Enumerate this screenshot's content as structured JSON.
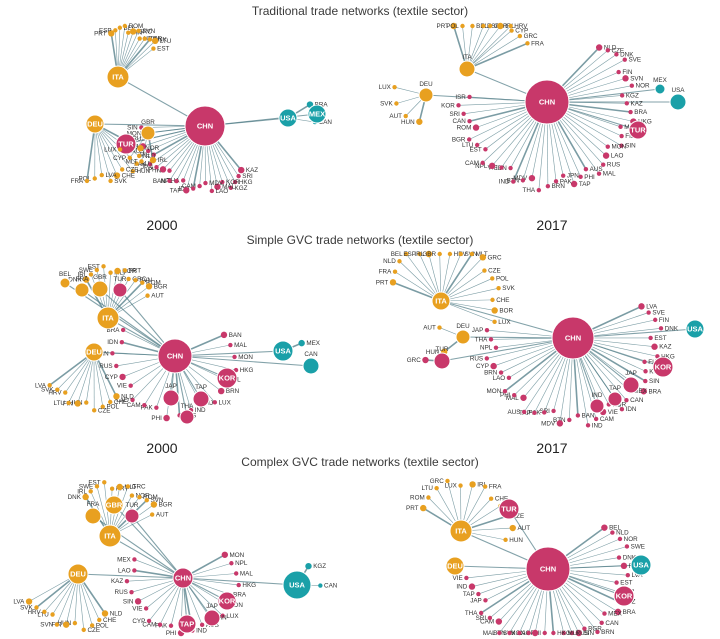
{
  "colors": {
    "asia": "#c8386a",
    "europe": "#e8a020",
    "americas": "#1aa0a8",
    "edge": "#4f7c86"
  },
  "sections": [
    {
      "title": "Traditional trade networks (textile sector)",
      "years": [
        "2000",
        "2017"
      ]
    },
    {
      "title": "Simple GVC trade networks (textile sector)",
      "years": [
        "2000",
        "2017"
      ]
    },
    {
      "title": "Complex GVC trade networks (textile sector)",
      "years": [
        "",
        ""
      ]
    }
  ],
  "networks": [
    {
      "hubs": [
        {
          "name": "CHN",
          "color": "asia",
          "leaves": [
            "KAZ",
            "SRI",
            "HKG",
            "KGZ",
            "KOR",
            "MAL",
            "LAO",
            "MDV",
            "CAM",
            "IDN",
            "TAP",
            "THA",
            "NPL",
            "BAN",
            "IND",
            "PHI",
            "JPN",
            "PAK",
            "VIE",
            "AUS",
            "FIJ",
            "RUS",
            "MON",
            "SIN"
          ]
        },
        {
          "name": "ITA",
          "color": "europe",
          "leaves": [
            "PRT",
            "ESP",
            "BEL",
            "ROM",
            "FIN",
            "GRC",
            "SVN",
            "HRV",
            "BGR",
            "DNK",
            "LTU",
            "EST"
          ]
        },
        {
          "name": "DEU",
          "color": "europe",
          "leaves": [
            "NOR",
            "NLD",
            "AUT",
            "HUN",
            "CZE",
            "CHE",
            "SVK",
            "LVA",
            "POL",
            "FRA"
          ]
        },
        {
          "name": "TUR",
          "color": "asia",
          "leaves": []
        },
        {
          "name": "USA",
          "color": "americas",
          "leaves": [
            "BRA",
            "CAN"
          ]
        },
        {
          "name": "MEX",
          "color": "americas",
          "leaves": []
        },
        {
          "name": "GBR",
          "color": "europe",
          "leaves": [
            "IRL",
            "MLT",
            "CYP",
            "LUX"
          ]
        }
      ]
    },
    {
      "hubs": [
        {
          "name": "CHN",
          "color": "asia",
          "leaves": [
            "NLD",
            "CZE",
            "DNK",
            "SVE",
            "FIN",
            "SVN",
            "NOR",
            "KGZ",
            "KAZ",
            "BRA",
            "HKG",
            "MLT",
            "FIJ",
            "SIN",
            "MON",
            "LAO",
            "RUS",
            "MAL",
            "AUS",
            "PHI",
            "TAP",
            "JPN",
            "PAK",
            "BRN",
            "THA",
            "MDV",
            "BTN",
            "IND",
            "IDN",
            "VIE",
            "NPL",
            "CAM",
            "EST",
            "LTU",
            "BGR",
            "ROM",
            "CAN",
            "SRI",
            "KOR",
            "ISR"
          ]
        },
        {
          "name": "ITA",
          "color": "europe",
          "leaves": [
            "PRT",
            "POL",
            "BEL",
            "ESP",
            "GBR",
            "IRL",
            "HRV",
            "CYP",
            "GRC",
            "FRA"
          ]
        },
        {
          "name": "DEU",
          "color": "europe",
          "leaves": [
            "HUN",
            "AUT",
            "SVK",
            "LUX"
          ]
        },
        {
          "name": "TUR",
          "color": "asia",
          "leaves": []
        },
        {
          "name": "USA",
          "color": "americas",
          "leaves": []
        },
        {
          "name": "MEX",
          "color": "americas",
          "leaves": []
        }
      ]
    },
    {
      "hubs": [
        {
          "name": "CHN",
          "color": "asia",
          "leaves": [
            "BAN",
            "MAL",
            "MON",
            "HKG",
            "NPL",
            "BRN",
            "LUX",
            "FIJ",
            "IND",
            "AUS",
            "PHI",
            "PAK",
            "CAM",
            "LAO",
            "VIE",
            "CYP",
            "RUS",
            "SIN",
            "IDN",
            "BRA"
          ]
        },
        {
          "name": "ITA",
          "color": "europe",
          "leaves": [
            "DNK",
            "IRL",
            "SWE",
            "EST",
            "MLT",
            "NOR",
            "PRT",
            "GRC",
            "SVN",
            "ROM",
            "BGR",
            "AUT"
          ]
        },
        {
          "name": "DEU",
          "color": "europe",
          "leaves": [
            "NLD",
            "CHE",
            "POL",
            "CZE",
            "HUN",
            "FIN",
            "LTU",
            "HRV",
            "SVK",
            "LVA"
          ]
        },
        {
          "name": "GBR",
          "color": "europe",
          "leaves": []
        },
        {
          "name": "TUR",
          "color": "asia",
          "leaves": []
        },
        {
          "name": "FRA",
          "color": "europe",
          "leaves": []
        },
        {
          "name": "BEL",
          "color": "europe",
          "leaves": []
        },
        {
          "name": "USA",
          "color": "americas",
          "leaves": [
            "MEX"
          ]
        },
        {
          "name": "CAN",
          "color": "americas",
          "leaves": []
        },
        {
          "name": "KOR",
          "color": "asia",
          "leaves": []
        },
        {
          "name": "JAP",
          "color": "asia",
          "leaves": []
        },
        {
          "name": "TAP",
          "color": "asia",
          "leaves": []
        },
        {
          "name": "THA",
          "color": "asia",
          "leaves": []
        }
      ]
    },
    {
      "hubs": [
        {
          "name": "CHN",
          "color": "asia",
          "leaves": [
            "LVA",
            "SVE",
            "FIN",
            "DNK",
            "EST",
            "KAZ",
            "HKG",
            "FIJ",
            "KGZ",
            "SIN",
            "BRA",
            "MEX",
            "CAN",
            "IDN",
            "KOR",
            "VIE",
            "CAM",
            "IND",
            "BAN",
            "BTN",
            "MDV",
            "SRI",
            "PAK",
            "TAP",
            "AUS",
            "MAL",
            "PHI",
            "MON",
            "LAO",
            "BRN",
            "CYP",
            "RUS",
            "NPL",
            "THA",
            "JAP"
          ]
        },
        {
          "name": "ITA",
          "color": "europe",
          "leaves": [
            "PRT",
            "FRA",
            "NLD",
            "BEL",
            "ESP",
            "IRL",
            "GBR",
            "HRV",
            "SVN",
            "MLT",
            "GRC",
            "CZE",
            "POL",
            "SVK",
            "CHE",
            "BOR",
            "LUX"
          ]
        },
        {
          "name": "DEU",
          "color": "europe",
          "leaves": [
            "HUN",
            "AUT"
          ]
        },
        {
          "name": "TUR",
          "color": "asia",
          "leaves": [
            "GRC"
          ]
        },
        {
          "name": "USA",
          "color": "americas",
          "leaves": []
        },
        {
          "name": "KOR",
          "color": "asia",
          "leaves": []
        },
        {
          "name": "JAP",
          "color": "asia",
          "leaves": []
        },
        {
          "name": "TAP",
          "color": "asia",
          "leaves": []
        },
        {
          "name": "IND",
          "color": "asia",
          "leaves": []
        }
      ]
    },
    {
      "hubs": [
        {
          "name": "CHN",
          "color": "asia",
          "leaves": [
            "MON",
            "NPL",
            "MAL",
            "HKG",
            "BRA",
            "IDN",
            "LUX",
            "BAN",
            "AUS",
            "IND",
            "PHI",
            "PAK",
            "CAM",
            "CYP",
            "VIE",
            "SIN",
            "RUS",
            "KAZ",
            "LAO",
            "MEX"
          ]
        },
        {
          "name": "ITA",
          "color": "europe",
          "leaves": [
            "DNK",
            "IRL",
            "SWE",
            "EST",
            "PRT",
            "MLT",
            "GRC",
            "NOR",
            "ROM",
            "SVN",
            "BGR",
            "AUT"
          ]
        },
        {
          "name": "DEU",
          "color": "europe",
          "leaves": [
            "NLD",
            "CHE",
            "POL",
            "CZE",
            "HUN",
            "FIN",
            "SVN",
            "LTU",
            "HRV",
            "SVK",
            "LVA"
          ]
        },
        {
          "name": "GBR",
          "color": "europe",
          "leaves": []
        },
        {
          "name": "FRA",
          "color": "europe",
          "leaves": []
        },
        {
          "name": "TUR",
          "color": "asia",
          "leaves": []
        },
        {
          "name": "USA",
          "color": "americas",
          "leaves": [
            "KGZ",
            "CAN"
          ]
        },
        {
          "name": "KOR",
          "color": "asia",
          "leaves": []
        },
        {
          "name": "JAP",
          "color": "asia",
          "leaves": []
        },
        {
          "name": "TAP",
          "color": "asia",
          "leaves": []
        }
      ]
    },
    {
      "hubs": [
        {
          "name": "CHN",
          "color": "asia",
          "leaves": [
            "BEL",
            "NLD",
            "NOR",
            "SWE",
            "DNK",
            "FIN",
            "LVA",
            "EST",
            "KAZ",
            "KGZ",
            "BRA",
            "MEX",
            "CAN",
            "BRN",
            "BGR",
            "SIN",
            "RUS",
            "MLT",
            "HKG",
            "PHI",
            "LAO",
            "MON",
            "SVK",
            "BTN",
            "MAL",
            "CAM",
            "SRI",
            "THA",
            "JAP",
            "TAP",
            "IND",
            "VIE"
          ]
        },
        {
          "name": "ITA",
          "color": "europe",
          "leaves": [
            "PRT",
            "ROM",
            "LTU",
            "GRC",
            "LUX",
            "IRL",
            "FRA",
            "CHE",
            "POL",
            "CZE",
            "AUT",
            "HUN"
          ]
        },
        {
          "name": "DEU",
          "color": "europe",
          "leaves": []
        },
        {
          "name": "TUR",
          "color": "asia",
          "leaves": []
        },
        {
          "name": "USA",
          "color": "americas",
          "leaves": []
        },
        {
          "name": "KOR",
          "color": "asia",
          "leaves": []
        }
      ]
    }
  ]
}
